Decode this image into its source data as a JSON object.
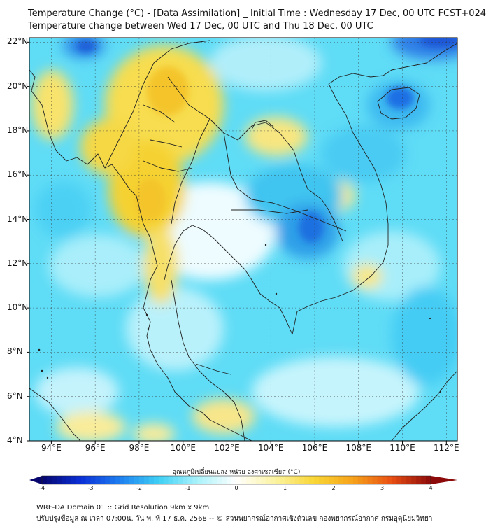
{
  "titles": {
    "line1": "Temperature Change (°C) - [Data Assimilation] _ Initial Time : Wednesday 17 Dec, 00 UTC FCST+024",
    "line2": "Temperature change between Wed 17 Dec, 00 UTC and Thu 18 Dec, 00 UTC"
  },
  "axes": {
    "lat_labels": [
      "22°N",
      "20°N",
      "18°N",
      "16°N",
      "14°N",
      "12°N",
      "10°N",
      "8°N",
      "6°N",
      "4°N"
    ],
    "lon_labels": [
      "94°E",
      "96°E",
      "98°E",
      "100°E",
      "102°E",
      "104°E",
      "106°E",
      "108°E",
      "110°E",
      "112°E"
    ],
    "lat_range": [
      4,
      22.2
    ],
    "lon_range": [
      93,
      112.5
    ]
  },
  "colorbar": {
    "label": "อุณหภูมิเปลี่ยนแปลง หน่วย องศาเซลเซียส (°C)",
    "ticks": [
      "-4",
      "-3",
      "-2",
      "-1",
      "0",
      "1",
      "2",
      "3",
      "4"
    ],
    "range": [
      -4,
      4
    ],
    "colors": [
      "#06066e",
      "#0a2fd6",
      "#1e7ef0",
      "#3fd0f5",
      "#aaf2fb",
      "#ffffff",
      "#fbf3a0",
      "#f9d635",
      "#f6a21a",
      "#e84e12",
      "#8c0a0a"
    ]
  },
  "footer": {
    "line1": "WRF-DA Domain 01 :: Grid Resolution 9km x 9km",
    "line2": "ปรับปรุงข้อมูล ณ เวลา 07:00น. วัน พ. ที่ 17 ธ.ค. 2568 -- © ส่วนพยากรณ์อากาศเชิงตัวเลข กองพยากรณ์อากาศ กรมอุตุนิยมวิทยา"
  }
}
